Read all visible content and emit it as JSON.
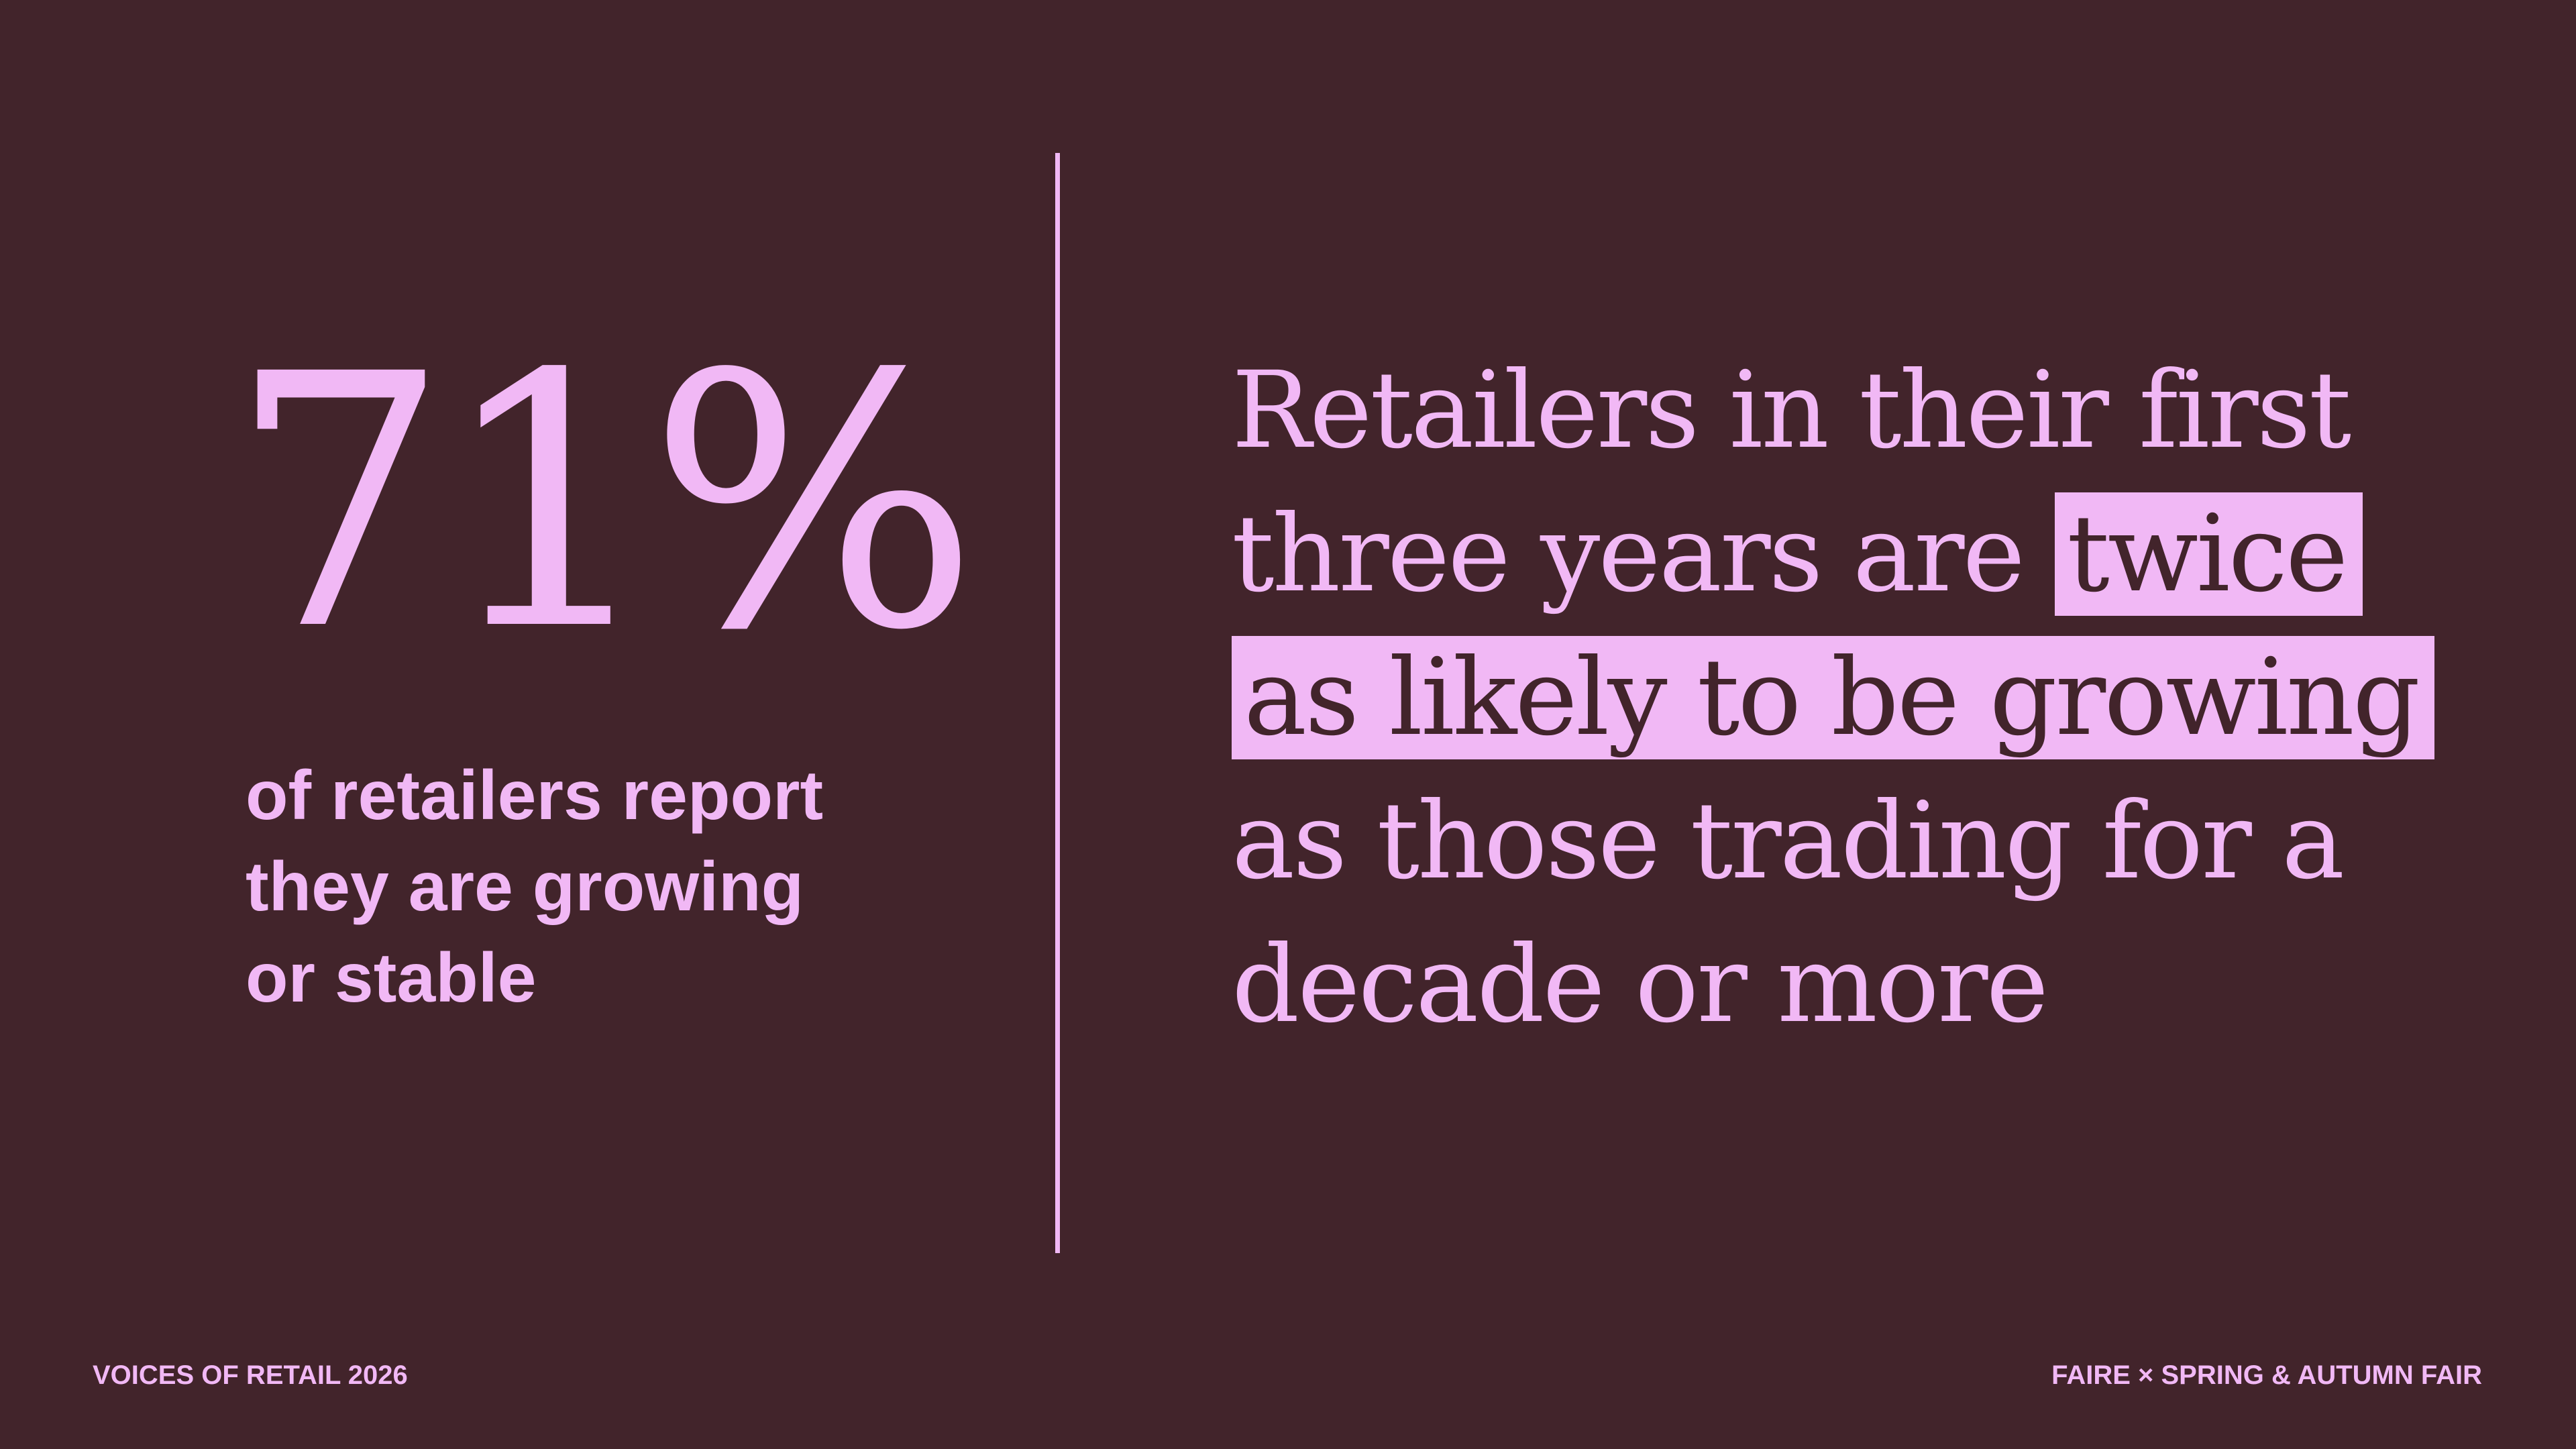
{
  "colors": {
    "background": "#42242b",
    "accent": "#f1b8f5"
  },
  "stat": {
    "value": "71%",
    "caption_lines": [
      "of retailers report",
      "they are growing",
      "or stable"
    ]
  },
  "quote": {
    "line1": "Retailers in their first",
    "line2_plain": "three years are",
    "line2_highlight": "twice",
    "line3_highlight": "as likely to be growing",
    "line4": "as those trading for a",
    "line5": "decade or more"
  },
  "footer": {
    "left": "VOICES OF RETAIL 2026",
    "right": "FAIRE × SPRING & AUTUMN FAIR"
  }
}
